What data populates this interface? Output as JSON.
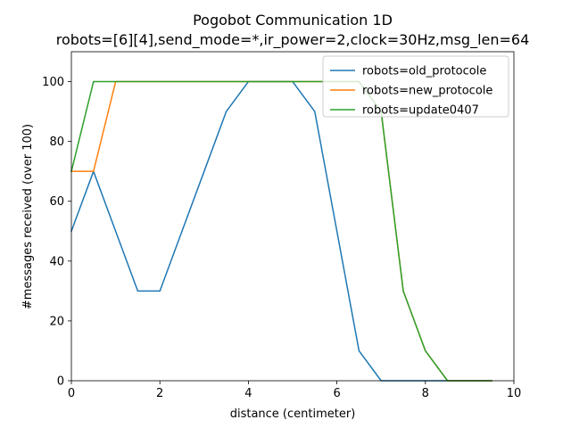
{
  "chart_data": {
    "type": "line",
    "title": "Pogobot Communication 1D",
    "subtitle": "robots=[6][4],send_mode=*,ir_power=2,clock=30Hz,msg_len=64",
    "xlabel": "distance (centimeter)",
    "ylabel": "#messages received (over 100)",
    "xlim": [
      0,
      10
    ],
    "ylim": [
      0,
      110
    ],
    "x_ticks": [
      "0",
      "2",
      "4",
      "6",
      "8",
      "10"
    ],
    "y_ticks": [
      "0",
      "20",
      "40",
      "60",
      "80",
      "100"
    ],
    "grid": false,
    "legend_position": "top-right",
    "series": [
      {
        "name": "robots=old_protocole",
        "color": "#1f77b4",
        "x": [
          0,
          0.5,
          1,
          1.5,
          2,
          2.5,
          3,
          3.5,
          4,
          4.5,
          5,
          5.5,
          6,
          6.5,
          7,
          7.5,
          8,
          8.5,
          9,
          9.5
        ],
        "y": [
          50,
          70,
          50,
          30,
          30,
          50,
          70,
          90,
          100,
          100,
          100,
          90,
          50,
          10,
          0,
          0,
          0,
          0,
          0,
          0
        ]
      },
      {
        "name": "robots=new_protocole",
        "color": "#ff7f0e",
        "x": [
          0,
          0.5,
          1,
          1.5,
          2,
          2.5,
          3,
          3.5,
          4,
          4.5,
          5,
          5.5,
          6,
          6.5,
          7,
          7.5,
          8,
          8.5,
          9,
          9.5
        ],
        "y": [
          70,
          70,
          100,
          100,
          100,
          100,
          100,
          100,
          100,
          100,
          100,
          100,
          100,
          100,
          90,
          30,
          10,
          0,
          0,
          0
        ]
      },
      {
        "name": "robots=update0407",
        "color": "#2ca02c",
        "x": [
          0,
          0.5,
          1,
          1.5,
          2,
          2.5,
          3,
          3.5,
          4,
          4.5,
          5,
          5.5,
          6,
          6.5,
          7,
          7.5,
          8,
          8.5,
          9,
          9.5
        ],
        "y": [
          70,
          100,
          100,
          100,
          100,
          100,
          100,
          100,
          100,
          100,
          100,
          100,
          100,
          100,
          90,
          30,
          10,
          0,
          0,
          0
        ]
      }
    ]
  }
}
